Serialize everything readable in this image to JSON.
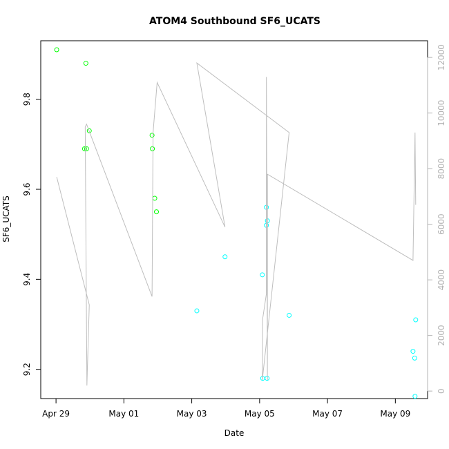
{
  "chart_data": {
    "type": "scatter",
    "title": "ATOM4 Southbound SF6_UCATS",
    "xlabel": "Date",
    "ylabel": "SF6_UCATS",
    "x_ticks": [
      {
        "label": "Apr 29",
        "day": 0
      },
      {
        "label": "May 01",
        "day": 2
      },
      {
        "label": "May 03",
        "day": 4
      },
      {
        "label": "May 05",
        "day": 6
      },
      {
        "label": "May 07",
        "day": 8
      },
      {
        "label": "May 09",
        "day": 10
      }
    ],
    "xlim": [
      -0.45,
      10.95
    ],
    "ylim": [
      9.135,
      9.93
    ],
    "y_ticks": [
      "9.2",
      "9.4",
      "9.6",
      "9.8"
    ],
    "y2lim": [
      -270,
      12600
    ],
    "y2_ticks": [
      "0",
      "2000",
      "4000",
      "6000",
      "8000",
      "10000",
      "12000"
    ],
    "grid": false,
    "series": [
      {
        "color": "#00ff00",
        "marker": "open-circle",
        "points": [
          {
            "x": 0.02,
            "y": 9.91
          },
          {
            "x": 0.88,
            "y": 9.88
          },
          {
            "x": 0.84,
            "y": 9.69
          },
          {
            "x": 0.9,
            "y": 9.69
          },
          {
            "x": 0.98,
            "y": 9.73
          },
          {
            "x": 2.83,
            "y": 9.72
          },
          {
            "x": 2.84,
            "y": 9.69
          },
          {
            "x": 2.91,
            "y": 9.58
          },
          {
            "x": 2.96,
            "y": 9.55
          }
        ]
      },
      {
        "color": "#00ffff",
        "marker": "open-circle",
        "points": [
          {
            "x": 4.15,
            "y": 9.33
          },
          {
            "x": 4.98,
            "y": 9.45
          },
          {
            "x": 6.08,
            "y": 9.41
          },
          {
            "x": 6.09,
            "y": 9.18
          },
          {
            "x": 6.2,
            "y": 9.56
          },
          {
            "x": 6.2,
            "y": 9.52
          },
          {
            "x": 6.23,
            "y": 9.53
          },
          {
            "x": 6.22,
            "y": 9.18
          },
          {
            "x": 6.87,
            "y": 9.32
          },
          {
            "x": 10.52,
            "y": 9.24
          },
          {
            "x": 10.57,
            "y": 9.225
          },
          {
            "x": 10.6,
            "y": 9.31
          },
          {
            "x": 10.58,
            "y": 9.14
          }
        ]
      },
      {
        "color": "#bebebe",
        "marker": "line",
        "axis": "right",
        "points": [
          {
            "x": 0.02,
            "y": 7700
          },
          {
            "x": 0.98,
            "y": 3100
          },
          {
            "x": 0.91,
            "y": 200
          },
          {
            "x": 0.86,
            "y": 9500
          },
          {
            "x": 0.9,
            "y": 9600
          },
          {
            "x": 2.83,
            "y": 3400
          },
          {
            "x": 2.86,
            "y": 9300
          },
          {
            "x": 2.98,
            "y": 11100
          },
          {
            "x": 4.98,
            "y": 5900
          },
          {
            "x": 4.15,
            "y": 11800
          },
          {
            "x": 6.87,
            "y": 9300
          },
          {
            "x": 6.08,
            "y": 400
          },
          {
            "x": 6.09,
            "y": 2600
          },
          {
            "x": 6.2,
            "y": 3500
          },
          {
            "x": 6.2,
            "y": 11300
          },
          {
            "x": 6.23,
            "y": 400
          },
          {
            "x": 6.23,
            "y": 7800
          },
          {
            "x": 10.52,
            "y": 4700
          },
          {
            "x": 10.58,
            "y": 9300
          },
          {
            "x": 10.6,
            "y": 6700
          }
        ]
      }
    ]
  }
}
